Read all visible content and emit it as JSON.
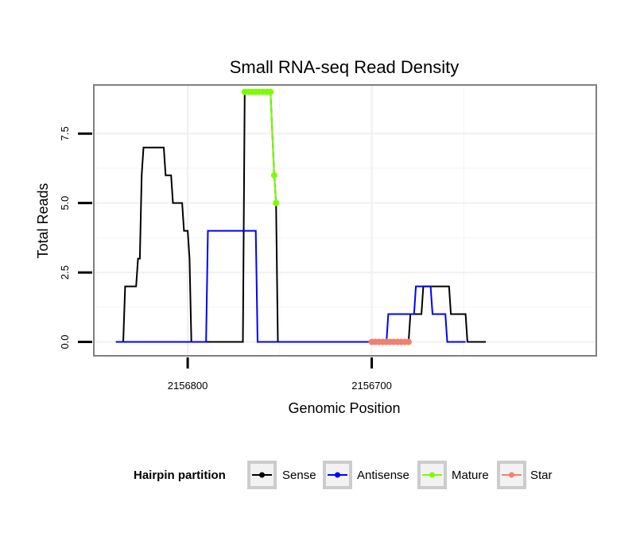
{
  "chart_data": {
    "type": "line",
    "title": "Small RNA-seq Read Density",
    "xlabel": "Genomic Position",
    "ylabel": "Total Reads",
    "x_reversed": true,
    "xlim": [
      2156851,
      2156578
    ],
    "ylim": [
      -0.5,
      9.25
    ],
    "x_ticks": [
      {
        "value": 2156800,
        "label": "2156800"
      },
      {
        "value": 2156700,
        "label": "2156700"
      }
    ],
    "y_ticks": [
      {
        "value": 0,
        "label": "0.0"
      },
      {
        "value": 2.5,
        "label": "2.5"
      },
      {
        "value": 5,
        "label": "5.0"
      },
      {
        "value": 7.5,
        "label": "7.5"
      }
    ],
    "legend": {
      "title": "Hairpin partition",
      "position": "bottom",
      "entries": [
        {
          "label": "Sense",
          "color": "#000000"
        },
        {
          "label": "Antisense",
          "color": "#0000ff"
        },
        {
          "label": "Mature",
          "color": "#7cfc00"
        },
        {
          "label": "Star",
          "color": "#f08070"
        }
      ]
    },
    "series": [
      {
        "name": "Sense",
        "color": "#000000",
        "style": "line",
        "points": [
          [
            2156839,
            0
          ],
          [
            2156835,
            0
          ],
          [
            2156834,
            2
          ],
          [
            2156828,
            2
          ],
          [
            2156827,
            3
          ],
          [
            2156826,
            3
          ],
          [
            2156825,
            6
          ],
          [
            2156824,
            7
          ],
          [
            2156813,
            7
          ],
          [
            2156812,
            6
          ],
          [
            2156809,
            6
          ],
          [
            2156808,
            5
          ],
          [
            2156803,
            5
          ],
          [
            2156802,
            4
          ],
          [
            2156800,
            4
          ],
          [
            2156799,
            3
          ],
          [
            2156798,
            0
          ],
          [
            2156770,
            0
          ],
          [
            2156769,
            9
          ],
          [
            2156755,
            9
          ],
          [
            2156753,
            6
          ],
          [
            2156752,
            5
          ],
          [
            2156751,
            0
          ],
          [
            2156680,
            0
          ],
          [
            2156679,
            1
          ],
          [
            2156673,
            1
          ],
          [
            2156672,
            2
          ],
          [
            2156658,
            2
          ],
          [
            2156657,
            1
          ],
          [
            2156649,
            1
          ],
          [
            2156648,
            0
          ],
          [
            2156638,
            0
          ]
        ]
      },
      {
        "name": "Antisense",
        "color": "#0000ff",
        "style": "line",
        "points": [
          [
            2156839,
            0
          ],
          [
            2156798,
            0
          ],
          [
            2156790,
            0
          ],
          [
            2156789,
            4
          ],
          [
            2156763,
            4
          ],
          [
            2156762,
            0
          ],
          [
            2156751,
            0
          ],
          [
            2156692,
            0
          ],
          [
            2156691,
            1
          ],
          [
            2156677,
            1
          ],
          [
            2156676,
            2
          ],
          [
            2156668,
            2
          ],
          [
            2156667,
            1
          ],
          [
            2156660,
            1
          ],
          [
            2156659,
            0
          ],
          [
            2156649,
            0
          ]
        ]
      },
      {
        "name": "Mature",
        "color": "#7cfc00",
        "style": "points",
        "points": [
          [
            2156769,
            9
          ],
          [
            2156767,
            9
          ],
          [
            2156765,
            9
          ],
          [
            2156763,
            9
          ],
          [
            2156761,
            9
          ],
          [
            2156759,
            9
          ],
          [
            2156757,
            9
          ],
          [
            2156755,
            9
          ],
          [
            2156753,
            6
          ],
          [
            2156752,
            5
          ]
        ]
      },
      {
        "name": "Star",
        "color": "#f08070",
        "style": "points",
        "points": [
          [
            2156700,
            0
          ],
          [
            2156698,
            0
          ],
          [
            2156696,
            0
          ],
          [
            2156694,
            0
          ],
          [
            2156692,
            0
          ],
          [
            2156690,
            0
          ],
          [
            2156688,
            0
          ],
          [
            2156686,
            0
          ],
          [
            2156684,
            0
          ],
          [
            2156682,
            0
          ],
          [
            2156680,
            0
          ]
        ]
      }
    ]
  }
}
